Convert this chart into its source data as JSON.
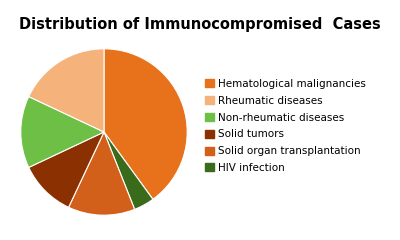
{
  "title": "Distribution of Immunocompromised  Cases",
  "labels": [
    "Hematological malignancies",
    "Rheumatic diseases",
    "Non-rheumatic diseases",
    "Solid tumors",
    "Solid organ transplantation",
    "HIV infection"
  ],
  "values": [
    40,
    18,
    14,
    11,
    13,
    4
  ],
  "colors": [
    "#E8721C",
    "#F5B27A",
    "#6DBF45",
    "#8B3000",
    "#D2601A",
    "#3A6B1A"
  ],
  "startangle": 90,
  "title_fontsize": 10.5,
  "legend_fontsize": 7.5,
  "bg_color": "#FFFFFF"
}
